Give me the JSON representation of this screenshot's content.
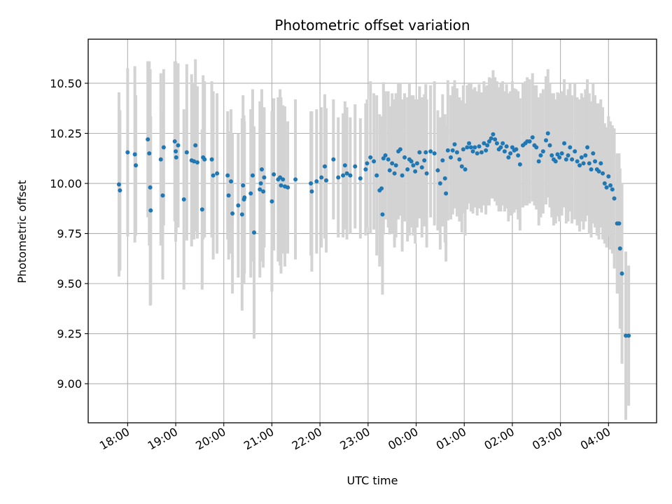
{
  "chart_data": {
    "type": "scatter",
    "title": "Photometric offset variation",
    "xlabel": "UTC time",
    "ylabel": "Photometric offset",
    "grid": true,
    "xlim": [
      17.18,
      29.0
    ],
    "ylim": [
      8.805,
      10.72
    ],
    "x_unit": "hours since previous midnight (UTC)",
    "x_ticks": [
      18,
      19,
      20,
      21,
      22,
      23,
      24,
      25,
      26,
      27,
      28
    ],
    "x_tick_labels": [
      "18:00",
      "19:00",
      "20:00",
      "21:00",
      "22:00",
      "23:00",
      "00:00",
      "01:00",
      "02:00",
      "03:00",
      "04:00"
    ],
    "y_ticks": [
      9.0,
      9.25,
      9.5,
      9.75,
      10.0,
      10.25,
      10.5
    ],
    "y_tick_labels": [
      "9.00",
      "9.25",
      "9.50",
      "9.75",
      "10.00",
      "10.25",
      "10.50"
    ],
    "colors": {
      "points": "#1f77b4",
      "errorbars": "#d3d3d3",
      "grid": "#b0b0b0",
      "axes": "#000000"
    },
    "series": [
      {
        "name": "offset",
        "description": "points are [time_hours, offset, half_error]",
        "points": [
          [
            17.82,
            9.995,
            0.46
          ],
          [
            17.84,
            9.965,
            0.4
          ],
          [
            18.0,
            10.155,
            0.42
          ],
          [
            18.15,
            10.145,
            0.44
          ],
          [
            18.17,
            10.09,
            0.35
          ],
          [
            18.42,
            10.22,
            0.39
          ],
          [
            18.45,
            10.15,
            0.46
          ],
          [
            18.47,
            9.98,
            0.59
          ],
          [
            18.48,
            9.865,
            0.47
          ],
          [
            18.69,
            10.12,
            0.43
          ],
          [
            18.73,
            9.94,
            0.42
          ],
          [
            18.75,
            10.18,
            0.39
          ],
          [
            18.98,
            10.21,
            0.4
          ],
          [
            19.0,
            10.16,
            0.45
          ],
          [
            19.01,
            10.13,
            0.38
          ],
          [
            19.05,
            10.19,
            0.41
          ],
          [
            19.17,
            9.92,
            0.45
          ],
          [
            19.23,
            10.155,
            0.44
          ],
          [
            19.33,
            10.115,
            0.43
          ],
          [
            19.38,
            10.11,
            0.39
          ],
          [
            19.41,
            10.19,
            0.43
          ],
          [
            19.45,
            10.105,
            0.38
          ],
          [
            19.55,
            9.87,
            0.4
          ],
          [
            19.57,
            10.13,
            0.41
          ],
          [
            19.6,
            10.12,
            0.39
          ],
          [
            19.75,
            10.12,
            0.39
          ],
          [
            19.78,
            10.04,
            0.42
          ],
          [
            19.86,
            10.05,
            0.4
          ],
          [
            20.08,
            10.04,
            0.32
          ],
          [
            20.1,
            9.94,
            0.32
          ],
          [
            20.15,
            10.01,
            0.36
          ],
          [
            20.18,
            9.85,
            0.4
          ],
          [
            20.3,
            9.89,
            0.36
          ],
          [
            20.38,
            9.845,
            0.48
          ],
          [
            20.4,
            9.99,
            0.45
          ],
          [
            20.43,
            9.93,
            0.38
          ],
          [
            20.42,
            9.92,
            0.42
          ],
          [
            20.56,
            9.95,
            0.42
          ],
          [
            20.6,
            10.04,
            0.43
          ],
          [
            20.63,
            9.755,
            0.53
          ],
          [
            20.75,
            9.97,
            0.44
          ],
          [
            20.77,
            10.0,
            0.39
          ],
          [
            20.79,
            10.07,
            0.4
          ],
          [
            20.84,
            10.03,
            0.35
          ],
          [
            20.82,
            9.96,
            0.38
          ],
          [
            21.0,
            9.91,
            0.45
          ],
          [
            21.04,
            10.045,
            0.38
          ],
          [
            21.13,
            10.02,
            0.41
          ],
          [
            21.17,
            10.03,
            0.44
          ],
          [
            21.19,
            9.99,
            0.44
          ],
          [
            21.23,
            10.02,
            0.37
          ],
          [
            21.27,
            9.985,
            0.4
          ],
          [
            21.33,
            9.98,
            0.33
          ],
          [
            21.49,
            10.02,
            0.4
          ],
          [
            21.81,
            10.0,
            0.36
          ],
          [
            21.83,
            9.96,
            0.4
          ],
          [
            21.93,
            10.01,
            0.36
          ],
          [
            22.03,
            10.03,
            0.35
          ],
          [
            22.13,
            10.015,
            0.36
          ],
          [
            22.1,
            10.085,
            0.36
          ],
          [
            22.28,
            10.12,
            0.3
          ],
          [
            22.38,
            10.03,
            0.3
          ],
          [
            22.48,
            10.04,
            0.31
          ],
          [
            22.52,
            10.09,
            0.32
          ],
          [
            22.56,
            10.05,
            0.33
          ],
          [
            22.63,
            10.04,
            0.29
          ],
          [
            22.73,
            10.085,
            0.31
          ],
          [
            22.84,
            10.025,
            0.3
          ],
          [
            22.95,
            10.07,
            0.33
          ],
          [
            22.98,
            10.1,
            0.32
          ],
          [
            23.05,
            10.13,
            0.38
          ],
          [
            23.12,
            10.11,
            0.34
          ],
          [
            23.18,
            10.04,
            0.4
          ],
          [
            23.24,
            9.965,
            0.38
          ],
          [
            23.28,
            9.975,
            0.36
          ],
          [
            23.3,
            9.845,
            0.4
          ],
          [
            23.32,
            10.125,
            0.38
          ],
          [
            23.36,
            10.14,
            0.32
          ],
          [
            23.42,
            10.12,
            0.34
          ],
          [
            23.45,
            10.065,
            0.32
          ],
          [
            23.5,
            10.1,
            0.35
          ],
          [
            23.55,
            10.05,
            0.37
          ],
          [
            23.58,
            10.09,
            0.36
          ],
          [
            23.63,
            10.16,
            0.34
          ],
          [
            23.67,
            10.17,
            0.33
          ],
          [
            23.71,
            10.04,
            0.38
          ],
          [
            23.76,
            10.13,
            0.32
          ],
          [
            23.82,
            10.07,
            0.36
          ],
          [
            23.86,
            10.12,
            0.38
          ],
          [
            23.9,
            10.11,
            0.33
          ],
          [
            23.94,
            10.09,
            0.35
          ],
          [
            23.98,
            10.06,
            0.36
          ],
          [
            24.02,
            10.1,
            0.32
          ],
          [
            24.07,
            10.155,
            0.33
          ],
          [
            24.12,
            10.08,
            0.35
          ],
          [
            24.17,
            10.115,
            0.33
          ],
          [
            24.2,
            10.155,
            0.34
          ],
          [
            24.22,
            10.05,
            0.37
          ],
          [
            24.3,
            10.16,
            0.33
          ],
          [
            24.38,
            10.15,
            0.36
          ],
          [
            24.45,
            10.065,
            0.3
          ],
          [
            24.5,
            10.0,
            0.33
          ],
          [
            24.55,
            10.115,
            0.33
          ],
          [
            24.6,
            10.025,
            0.32
          ],
          [
            24.62,
            9.95,
            0.34
          ],
          [
            24.66,
            10.165,
            0.35
          ],
          [
            24.72,
            10.13,
            0.31
          ],
          [
            24.76,
            10.165,
            0.32
          ],
          [
            24.8,
            10.195,
            0.32
          ],
          [
            24.85,
            10.155,
            0.32
          ],
          [
            24.9,
            10.12,
            0.31
          ],
          [
            24.95,
            10.085,
            0.33
          ],
          [
            24.98,
            10.17,
            0.32
          ],
          [
            25.02,
            10.07,
            0.33
          ],
          [
            25.06,
            10.18,
            0.31
          ],
          [
            25.1,
            10.2,
            0.3
          ],
          [
            25.14,
            10.18,
            0.32
          ],
          [
            25.18,
            10.16,
            0.31
          ],
          [
            25.22,
            10.18,
            0.3
          ],
          [
            25.27,
            10.15,
            0.31
          ],
          [
            25.31,
            10.185,
            0.31
          ],
          [
            25.36,
            10.155,
            0.3
          ],
          [
            25.41,
            10.2,
            0.31
          ],
          [
            25.45,
            10.165,
            0.32
          ],
          [
            25.48,
            10.19,
            0.3
          ],
          [
            25.52,
            10.21,
            0.32
          ],
          [
            25.56,
            10.225,
            0.3
          ],
          [
            25.6,
            10.245,
            0.32
          ],
          [
            25.64,
            10.22,
            0.31
          ],
          [
            25.68,
            10.2,
            0.31
          ],
          [
            25.72,
            10.17,
            0.31
          ],
          [
            25.76,
            10.18,
            0.32
          ],
          [
            25.8,
            10.2,
            0.31
          ],
          [
            25.84,
            10.16,
            0.3
          ],
          [
            25.88,
            10.185,
            0.31
          ],
          [
            25.92,
            10.13,
            0.32
          ],
          [
            25.96,
            10.15,
            0.31
          ],
          [
            26.0,
            10.18,
            0.33
          ],
          [
            26.04,
            10.165,
            0.31
          ],
          [
            26.08,
            10.17,
            0.3
          ],
          [
            26.12,
            10.14,
            0.32
          ],
          [
            26.16,
            10.095,
            0.33
          ],
          [
            26.22,
            10.19,
            0.31
          ],
          [
            26.27,
            10.2,
            0.31
          ],
          [
            26.31,
            10.21,
            0.32
          ],
          [
            26.36,
            10.21,
            0.31
          ],
          [
            26.42,
            10.23,
            0.32
          ],
          [
            26.46,
            10.19,
            0.3
          ],
          [
            26.5,
            10.18,
            0.31
          ],
          [
            26.55,
            10.11,
            0.32
          ],
          [
            26.59,
            10.14,
            0.31
          ],
          [
            26.64,
            10.16,
            0.31
          ],
          [
            26.7,
            10.215,
            0.32
          ],
          [
            26.74,
            10.25,
            0.32
          ],
          [
            26.78,
            10.19,
            0.31
          ],
          [
            26.82,
            10.14,
            0.31
          ],
          [
            26.86,
            10.12,
            0.33
          ],
          [
            26.9,
            10.11,
            0.31
          ],
          [
            26.94,
            10.145,
            0.31
          ],
          [
            26.98,
            10.13,
            0.32
          ],
          [
            27.03,
            10.15,
            0.31
          ],
          [
            27.08,
            10.2,
            0.32
          ],
          [
            27.12,
            10.12,
            0.32
          ],
          [
            27.16,
            10.14,
            0.33
          ],
          [
            27.2,
            10.18,
            0.32
          ],
          [
            27.24,
            10.12,
            0.32
          ],
          [
            27.3,
            10.16,
            0.34
          ],
          [
            27.35,
            10.11,
            0.32
          ],
          [
            27.4,
            10.09,
            0.33
          ],
          [
            27.44,
            10.13,
            0.32
          ],
          [
            27.48,
            10.1,
            0.33
          ],
          [
            27.52,
            10.14,
            0.33
          ],
          [
            27.56,
            10.18,
            0.34
          ],
          [
            27.6,
            10.1,
            0.35
          ],
          [
            27.64,
            10.07,
            0.34
          ],
          [
            27.68,
            10.15,
            0.35
          ],
          [
            27.72,
            10.11,
            0.33
          ],
          [
            27.76,
            10.07,
            0.33
          ],
          [
            27.8,
            10.06,
            0.34
          ],
          [
            27.84,
            10.1,
            0.32
          ],
          [
            27.88,
            10.05,
            0.33
          ],
          [
            27.92,
            10.0,
            0.3
          ],
          [
            27.96,
            9.98,
            0.3
          ],
          [
            28.0,
            10.035,
            0.3
          ],
          [
            28.04,
            9.99,
            0.32
          ],
          [
            28.08,
            9.97,
            0.32
          ],
          [
            28.12,
            9.925,
            0.35
          ],
          [
            28.18,
            9.8,
            0.35
          ],
          [
            28.22,
            9.8,
            0.35
          ],
          [
            28.24,
            9.675,
            0.4
          ],
          [
            28.28,
            9.55,
            0.45
          ],
          [
            28.36,
            9.24,
            0.42
          ],
          [
            28.42,
            9.24,
            0.35
          ]
        ]
      }
    ]
  }
}
